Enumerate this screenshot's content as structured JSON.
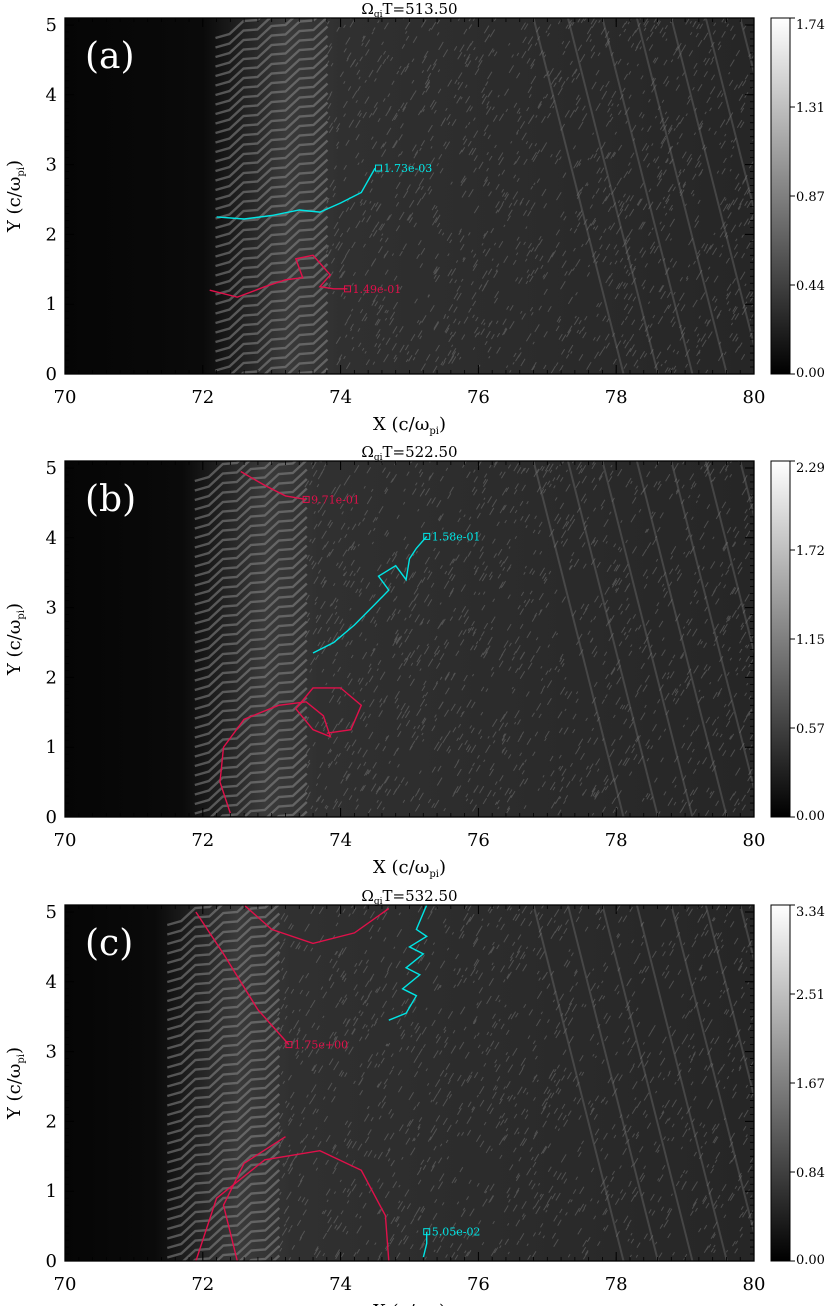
{
  "chart_data": [
    {
      "type": "heatmap",
      "panel": "(a)",
      "title_prefix": "Ω",
      "title_sub": "gi",
      "title_suffix": "T=513.50",
      "xlabel_main": "X (c/ω",
      "xlabel_sub": "pi",
      "xlabel_close": ")",
      "ylabel_main": "Y (c/ω",
      "ylabel_sub": "pi",
      "ylabel_close": ")",
      "xlim": [
        70,
        80
      ],
      "ylim": [
        0,
        5.1
      ],
      "x_ticks": [
        "70",
        "72",
        "74",
        "76",
        "78",
        "80"
      ],
      "y_ticks": [
        "0",
        "1",
        "2",
        "3",
        "4",
        "5"
      ],
      "colorbar_ticks": [
        "1.74",
        "1.31",
        "0.87",
        "0.44",
        "0.00"
      ],
      "colorbar_range": [
        0.0,
        1.74
      ],
      "front_x": 73.2,
      "trajectories": [
        {
          "color": "#00e5e5",
          "label": "1.73e-03",
          "label_at": [
            74.55,
            2.95
          ],
          "points": [
            [
              72.2,
              2.25
            ],
            [
              72.6,
              2.22
            ],
            [
              73.0,
              2.27
            ],
            [
              73.4,
              2.35
            ],
            [
              73.7,
              2.32
            ],
            [
              74.0,
              2.45
            ],
            [
              74.3,
              2.6
            ],
            [
              74.5,
              2.95
            ]
          ]
        },
        {
          "color": "#e0104a",
          "label": "1.49e-01",
          "label_at": [
            74.1,
            1.22
          ],
          "points": [
            [
              72.1,
              1.2
            ],
            [
              72.5,
              1.1
            ],
            [
              72.9,
              1.25
            ],
            [
              73.2,
              1.35
            ],
            [
              73.45,
              1.38
            ],
            [
              73.35,
              1.65
            ],
            [
              73.6,
              1.7
            ],
            [
              73.85,
              1.42
            ],
            [
              73.7,
              1.25
            ],
            [
              73.9,
              1.22
            ],
            [
              74.1,
              1.22
            ]
          ]
        }
      ]
    },
    {
      "type": "heatmap",
      "panel": "(b)",
      "title_prefix": "Ω",
      "title_sub": "gi",
      "title_suffix": "T=522.50",
      "xlabel_main": "X (c/ω",
      "xlabel_sub": "pi",
      "xlabel_close": ")",
      "ylabel_main": "Y (c/ω",
      "ylabel_sub": "pi",
      "ylabel_close": ")",
      "xlim": [
        70,
        80
      ],
      "ylim": [
        0,
        5.1
      ],
      "x_ticks": [
        "70",
        "72",
        "74",
        "76",
        "78",
        "80"
      ],
      "y_ticks": [
        "0",
        "1",
        "2",
        "3",
        "4",
        "5"
      ],
      "colorbar_ticks": [
        "2.29",
        "1.72",
        "1.15",
        "0.57",
        "0.00"
      ],
      "colorbar_range": [
        0.0,
        2.29
      ],
      "front_x": 72.9,
      "trajectories": [
        {
          "color": "#00e5e5",
          "label": "1.58e-01",
          "label_at": [
            75.25,
            4.02
          ],
          "points": [
            [
              73.6,
              2.35
            ],
            [
              73.9,
              2.5
            ],
            [
              74.2,
              2.75
            ],
            [
              74.5,
              3.05
            ],
            [
              74.7,
              3.25
            ],
            [
              74.55,
              3.45
            ],
            [
              74.8,
              3.6
            ],
            [
              74.95,
              3.4
            ],
            [
              75.0,
              3.7
            ],
            [
              75.1,
              3.85
            ],
            [
              75.25,
              4.02
            ]
          ]
        },
        {
          "color": "#e0104a",
          "label": "9.71e-01",
          "label_at": [
            73.5,
            4.55
          ],
          "points": [
            [
              72.55,
              4.95
            ],
            [
              72.9,
              4.75
            ],
            [
              73.2,
              4.6
            ],
            [
              73.5,
              4.55
            ]
          ]
        },
        {
          "color": "#e0104a",
          "label": "",
          "label_at": [
            0,
            0
          ],
          "points": [
            [
              72.4,
              0.05
            ],
            [
              72.25,
              0.5
            ],
            [
              72.3,
              1.0
            ],
            [
              72.6,
              1.4
            ],
            [
              73.1,
              1.6
            ],
            [
              73.5,
              1.65
            ],
            [
              73.75,
              1.45
            ],
            [
              73.85,
              1.15
            ],
            [
              73.6,
              1.25
            ],
            [
              73.35,
              1.55
            ],
            [
              73.6,
              1.85
            ],
            [
              74.0,
              1.85
            ],
            [
              74.3,
              1.6
            ],
            [
              74.15,
              1.25
            ],
            [
              73.8,
              1.2
            ]
          ]
        }
      ]
    },
    {
      "type": "heatmap",
      "panel": "(c)",
      "title_prefix": "Ω",
      "title_sub": "gi",
      "title_suffix": "T=532.50",
      "xlabel_main": "X (c/ω",
      "xlabel_sub": "pi",
      "xlabel_close": ")",
      "ylabel_main": "Y (c/ω",
      "ylabel_sub": "pi",
      "ylabel_close": ")",
      "xlim": [
        70,
        80
      ],
      "ylim": [
        0,
        5.1
      ],
      "x_ticks": [
        "70",
        "72",
        "74",
        "76",
        "78",
        "80"
      ],
      "y_ticks": [
        "0",
        "1",
        "2",
        "3",
        "4",
        "5"
      ],
      "colorbar_ticks": [
        "3.34",
        "2.51",
        "1.67",
        "0.84",
        "0.00"
      ],
      "colorbar_range": [
        0.0,
        3.34
      ],
      "front_x": 72.5,
      "trajectories": [
        {
          "color": "#00e5e5",
          "label": "",
          "label_at": [
            0,
            0
          ],
          "points": [
            [
              74.7,
              3.45
            ],
            [
              74.95,
              3.55
            ],
            [
              75.1,
              3.8
            ],
            [
              74.9,
              3.9
            ],
            [
              75.15,
              4.1
            ],
            [
              74.95,
              4.2
            ],
            [
              75.2,
              4.4
            ],
            [
              75.0,
              4.5
            ],
            [
              75.25,
              4.65
            ],
            [
              75.1,
              4.75
            ],
            [
              75.25,
              5.1
            ]
          ]
        },
        {
          "color": "#00e5e5",
          "label": "5.05e-02",
          "label_at": [
            75.25,
            0.42
          ],
          "points": [
            [
              75.2,
              0.05
            ],
            [
              75.25,
              0.25
            ],
            [
              75.25,
              0.42
            ]
          ]
        },
        {
          "color": "#e0104a",
          "label": "1.75e+00",
          "label_at": [
            73.25,
            3.1
          ],
          "points": [
            [
              71.9,
              5.0
            ],
            [
              72.3,
              4.4
            ],
            [
              72.8,
              3.6
            ],
            [
              73.25,
              3.1
            ]
          ]
        },
        {
          "color": "#e0104a",
          "label": "",
          "label_at": [
            0,
            0
          ],
          "points": [
            [
              72.6,
              5.1
            ],
            [
              73.0,
              4.75
            ],
            [
              73.6,
              4.55
            ],
            [
              74.2,
              4.7
            ],
            [
              74.7,
              5.05
            ]
          ]
        },
        {
          "color": "#e0104a",
          "label": "",
          "label_at": [
            0,
            0
          ],
          "points": [
            [
              71.9,
              0.0
            ],
            [
              72.2,
              0.9
            ],
            [
              72.9,
              1.45
            ],
            [
              73.7,
              1.58
            ],
            [
              74.3,
              1.3
            ],
            [
              74.65,
              0.65
            ],
            [
              74.7,
              0.0
            ]
          ]
        },
        {
          "color": "#e0104a",
          "label": "",
          "label_at": [
            0,
            0
          ],
          "points": [
            [
              73.2,
              1.78
            ],
            [
              72.6,
              1.4
            ],
            [
              72.3,
              0.8
            ],
            [
              72.5,
              0.0
            ]
          ]
        }
      ]
    }
  ]
}
